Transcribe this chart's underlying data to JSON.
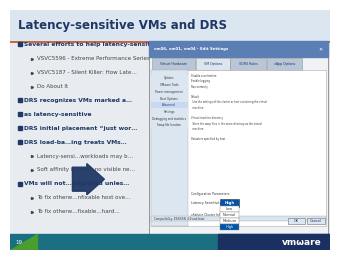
{
  "title": "Latency-sensitive VMs and DRS",
  "title_color": "#1F3864",
  "title_fontsize": 8.5,
  "bg_color": "#FFFFFF",
  "footer_bg": "#1a7080",
  "footer_right_bg": "#1a3060",
  "footer_green": "#4a9e30",
  "footer_num": "19",
  "slide_bg": "#FFFFFF",
  "header_line_color": "#C05020",
  "bullet_color": "#1F3864",
  "bullet1_color": "#1F3864",
  "bullet2_color": "#444444",
  "title_bar_color": "#dce6f1",
  "dialog_titlebar": "#5b7fb5",
  "dialog_tab_active": "#dce6f1",
  "dialog_tab_inactive": "#b8c6d8",
  "dialog_sidebar_bg": "#dce6f1",
  "dialog_sidebar_active": "#c8d8f0",
  "dialog_bg": "#f0f2f5",
  "dialog_content_bg": "#ffffff",
  "dropdown_blue": "#0055aa",
  "dropdown_option_selected": "#0055aa",
  "arrow_color": "#1F3864",
  "bullet_lines": [
    [
      1,
      true,
      "Several efforts to help latency-sensitive apps"
    ],
    [
      2,
      false,
      "VSVC5596 - Extreme Performance Series: Network Speed Ahead"
    ],
    [
      2,
      false,
      "VSVC5187 - Silent Killer: How Late…"
    ],
    [
      2,
      false,
      "Do About It"
    ],
    [
      1,
      true,
      "DRS recognizes VMs marked a…"
    ],
    [
      1,
      true,
      "as latency-sensitive"
    ],
    [
      1,
      true,
      "DRS initial placement “just wor…"
    ],
    [
      1,
      true,
      "DRS load-ba…ing treats VMs…"
    ],
    [
      2,
      false,
      "Latency-sensi…workloads may b…"
    ],
    [
      2,
      false,
      "Soft affinity is…rnal, no visible ne…"
    ],
    [
      1,
      true,
      "VMs will not…migrated unles…"
    ],
    [
      2,
      false,
      "To fix otherw…nfixable host ove…"
    ],
    [
      2,
      false,
      "To fix otherw…fixable…hard…"
    ]
  ]
}
